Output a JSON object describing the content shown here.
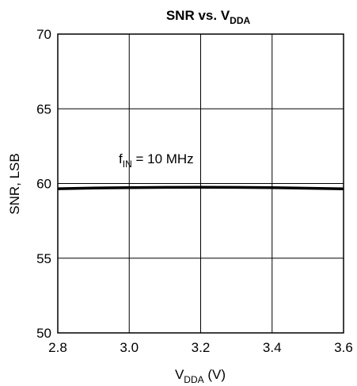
{
  "chart_data": {
    "type": "line",
    "title": {
      "main": "SNR vs. V",
      "sub": "DDA"
    },
    "xlabel": {
      "main": "V",
      "sub": "DDA",
      "suffix": " (V)"
    },
    "ylabel": "SNR, LSB",
    "xlim": [
      2.8,
      3.6
    ],
    "ylim": [
      50,
      70
    ],
    "xticks": [
      2.8,
      3.0,
      3.2,
      3.4,
      3.6
    ],
    "xtick_labels": [
      "2.8",
      "3.0",
      "3.2",
      "3.4",
      "3.6"
    ],
    "yticks": [
      50,
      55,
      60,
      65,
      70
    ],
    "ytick_labels": [
      "50",
      "55",
      "60",
      "65",
      "70"
    ],
    "grid": true,
    "annotation": {
      "main": "f",
      "sub": "IN",
      "suffix": " = 10 MHz"
    },
    "series": [
      {
        "x": [
          2.8,
          2.9,
          3.0,
          3.1,
          3.2,
          3.3,
          3.4,
          3.5,
          3.6
        ],
        "y": [
          59.65,
          59.7,
          59.72,
          59.74,
          59.75,
          59.74,
          59.72,
          59.68,
          59.64
        ],
        "color": "#000000"
      }
    ]
  }
}
